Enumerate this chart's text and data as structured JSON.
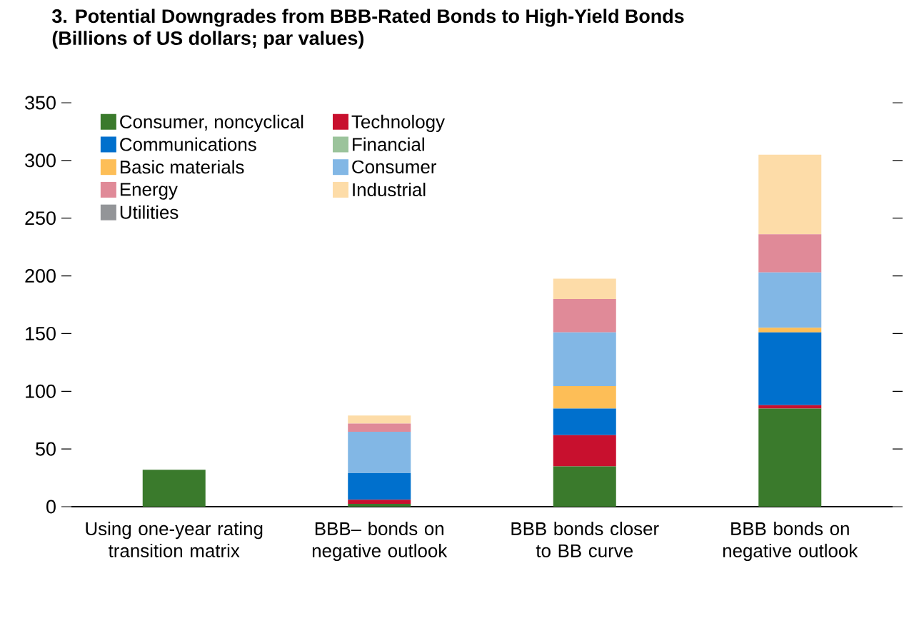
{
  "chart_data": {
    "type": "bar",
    "title": "3. Potential Downgrades from BBB-Rated Bonds to High-Yield Bonds",
    "subtitle": "(Billions of US dollars; par values)",
    "categories": [
      "Using one-year rating transition matrix",
      "BBB– bonds on negative outlook",
      "BBB bonds closer to BB curve",
      "BBB bonds on negative outlook"
    ],
    "stacked": true,
    "ylim": [
      0,
      350
    ],
    "yticks": [
      0,
      50,
      100,
      150,
      200,
      250,
      300,
      350
    ],
    "grid": false,
    "legend": "top left",
    "series": [
      {
        "name": "Consumer, noncyclical",
        "color": "#3a7a2c",
        "values": [
          32,
          2.5,
          35,
          85
        ]
      },
      {
        "name": "Technology",
        "color": "#c8102e",
        "values": [
          0,
          3.5,
          27,
          3
        ]
      },
      {
        "name": "Communications",
        "color": "#0070cd",
        "values": [
          0,
          23,
          23,
          63
        ]
      },
      {
        "name": "Financial",
        "color": "#9bc39b",
        "values": [
          0,
          0,
          0,
          0
        ]
      },
      {
        "name": "Basic materials",
        "color": "#fdbe57",
        "values": [
          0,
          0,
          19.5,
          4
        ]
      },
      {
        "name": "Consumer",
        "color": "#82b7e5",
        "values": [
          0,
          36,
          46.5,
          48
        ]
      },
      {
        "name": "Energy",
        "color": "#e08a98",
        "values": [
          0,
          7,
          29,
          33
        ]
      },
      {
        "name": "Industrial",
        "color": "#fddca8",
        "values": [
          0,
          7,
          17.5,
          69
        ]
      },
      {
        "name": "Utilities",
        "color": "#939598",
        "values": [
          0,
          0,
          0,
          0
        ]
      }
    ]
  }
}
